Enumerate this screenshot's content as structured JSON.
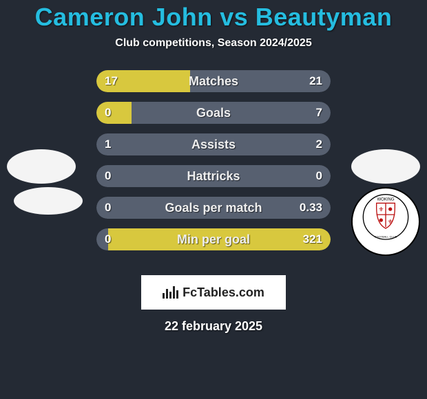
{
  "background_color": "#242a34",
  "title": {
    "text": "Cameron John vs Beautyman",
    "color": "#25bde0",
    "fontsize": 36
  },
  "subtitle": {
    "text": "Club competitions, Season 2024/2025",
    "color": "#ffffff",
    "fontsize": 16
  },
  "bars": {
    "track_color": "#576070",
    "fill_color": "#d8c83e",
    "label_color": "#eeeeee",
    "value_color": "#ffffff",
    "label_fontsize": 18,
    "value_fontsize": 17,
    "rows": [
      {
        "label": "Matches",
        "left": "17",
        "right": "21",
        "left_pct": 40,
        "right_pct": 0
      },
      {
        "label": "Goals",
        "left": "0",
        "right": "7",
        "left_pct": 15,
        "right_pct": 0
      },
      {
        "label": "Assists",
        "left": "1",
        "right": "2",
        "left_pct": 0,
        "right_pct": 0
      },
      {
        "label": "Hattricks",
        "left": "0",
        "right": "0",
        "left_pct": 0,
        "right_pct": 0
      },
      {
        "label": "Goals per match",
        "left": "0",
        "right": "0.33",
        "left_pct": 0,
        "right_pct": 0
      },
      {
        "label": "Min per goal",
        "left": "0",
        "right": "321",
        "left_pct": 0,
        "right_pct": 95
      }
    ]
  },
  "badges": {
    "ellipse_color": "#f4f4f4",
    "crest_bg": "#ffffff",
    "crest_ring": "#000000",
    "crest_text_top": "WOKING",
    "crest_text_bottom": "FOOTBALL CLUB"
  },
  "brand": {
    "bg": "#ffffff",
    "text": "FcTables.com",
    "text_color": "#222222",
    "fontsize": 18
  },
  "date": {
    "text": "22 february 2025",
    "color": "#ffffff",
    "fontsize": 18
  }
}
